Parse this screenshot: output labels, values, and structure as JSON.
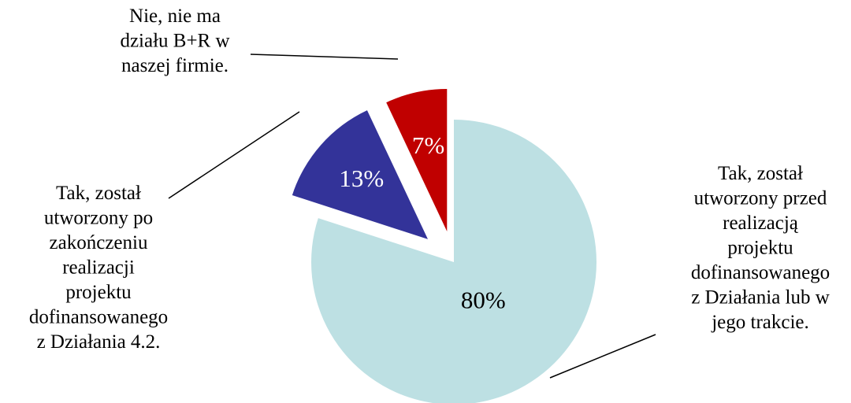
{
  "chart_data": {
    "type": "pie",
    "title": "",
    "exploded": true,
    "slices": [
      {
        "name": "Tak, został utworzony przed realizacją projektu dofinansowanego z Działania lub w jego trakcie.",
        "label_lines": [
          "Tak, został",
          "utworzony przed",
          "realizacją",
          "projektu",
          "dofinansowanego",
          "z Działania lub w",
          "jego trakcie."
        ],
        "value": 80,
        "display": "80%",
        "color": "#bde0e3",
        "label_text_color": "#000000"
      },
      {
        "name": "Tak, został utworzony po zakończeniu realizacji projektu dofinansowanego z Działania 4.2.",
        "label_lines": [
          "Tak, został",
          "utworzony po",
          "zakończeniu",
          "realizacji",
          "projektu",
          "dofinansowanego",
          "z Działania 4.2."
        ],
        "value": 13,
        "display": "13%",
        "color": "#333399",
        "label_text_color": "#ffffff"
      },
      {
        "name": "Nie, nie ma działu B+R w naszej firmie.",
        "label_lines": [
          "Nie, nie ma",
          "działu B+R w",
          "naszej firmie."
        ],
        "value": 7,
        "display": "7%",
        "color": "#c00000",
        "label_text_color": "#ffffff"
      }
    ]
  }
}
